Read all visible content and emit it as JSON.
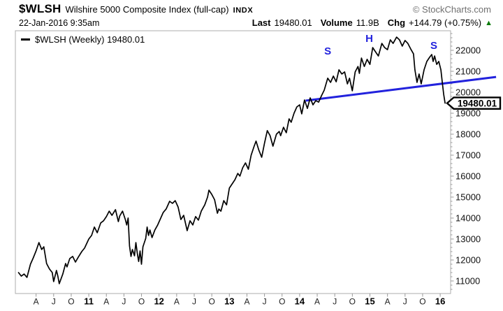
{
  "header": {
    "symbol": "$WLSH",
    "description": "Wilshire 5000 Composite Index (full-cap)",
    "exchange": "INDX",
    "copyright": "© StockCharts.com",
    "datetime": "22-Jan-2016 9:35am",
    "last_label": "Last",
    "last_value": "19480.01",
    "volume_label": "Volume",
    "volume_value": "11.9B",
    "chg_label": "Chg",
    "chg_value": "+144.79 (+0.75%)",
    "chg_arrow": "▲"
  },
  "legend": {
    "label": "$WLSH (Weekly)",
    "value": "19480.01"
  },
  "price_tag": {
    "value": "19480.01"
  },
  "colors": {
    "price_line": "#000000",
    "trendline": "#2222dd",
    "annotation": "#2222dd",
    "chg_up": "#0a7a0a",
    "frame": "#adadad",
    "tick": "#999999",
    "month_label": "#222222",
    "year_label": "#000000",
    "y_label": "#111111",
    "copyright": "#707070"
  },
  "chart_data": {
    "type": "line",
    "title": "$WLSH (Weekly)",
    "symbol": "$WLSH",
    "timeframe": "Weekly",
    "last": 19480.01,
    "grid": false,
    "legend_position": "top-left",
    "y_axis": {
      "min": 10400,
      "max": 22930,
      "tick_interval": 1000,
      "labels": [
        22000,
        21000,
        20000,
        19000,
        18000,
        17000,
        16000,
        15000,
        14000,
        13000,
        12000,
        11000
      ]
    },
    "x_axis": {
      "ticks": [
        {
          "label": "A",
          "year": 2010.25,
          "bold": false
        },
        {
          "label": "J",
          "year": 2010.5,
          "bold": false
        },
        {
          "label": "O",
          "year": 2010.75,
          "bold": false
        },
        {
          "label": "11",
          "year": 2011.0,
          "bold": true
        },
        {
          "label": "A",
          "year": 2011.25,
          "bold": false
        },
        {
          "label": "J",
          "year": 2011.5,
          "bold": false
        },
        {
          "label": "O",
          "year": 2011.75,
          "bold": false
        },
        {
          "label": "12",
          "year": 2012.0,
          "bold": true
        },
        {
          "label": "A",
          "year": 2012.25,
          "bold": false
        },
        {
          "label": "J",
          "year": 2012.5,
          "bold": false
        },
        {
          "label": "O",
          "year": 2012.75,
          "bold": false
        },
        {
          "label": "13",
          "year": 2013.0,
          "bold": true
        },
        {
          "label": "A",
          "year": 2013.25,
          "bold": false
        },
        {
          "label": "J",
          "year": 2013.5,
          "bold": false
        },
        {
          "label": "O",
          "year": 2013.75,
          "bold": false
        },
        {
          "label": "14",
          "year": 2014.0,
          "bold": true
        },
        {
          "label": "A",
          "year": 2014.25,
          "bold": false
        },
        {
          "label": "J",
          "year": 2014.5,
          "bold": false
        },
        {
          "label": "O",
          "year": 2014.75,
          "bold": false
        },
        {
          "label": "15",
          "year": 2015.0,
          "bold": true
        },
        {
          "label": "A",
          "year": 2015.25,
          "bold": false
        },
        {
          "label": "J",
          "year": 2015.5,
          "bold": false
        },
        {
          "label": "O",
          "year": 2015.75,
          "bold": false
        },
        {
          "label": "16",
          "year": 2016.0,
          "bold": true
        }
      ]
    },
    "series": [
      {
        "name": "$WLSH weekly close",
        "points": [
          [
            2010.0,
            11400
          ],
          [
            2010.04,
            11230
          ],
          [
            2010.08,
            11330
          ],
          [
            2010.12,
            11170
          ],
          [
            2010.17,
            11800
          ],
          [
            2010.21,
            12100
          ],
          [
            2010.25,
            12430
          ],
          [
            2010.29,
            12830
          ],
          [
            2010.33,
            12500
          ],
          [
            2010.36,
            12630
          ],
          [
            2010.4,
            11830
          ],
          [
            2010.44,
            11570
          ],
          [
            2010.48,
            11400
          ],
          [
            2010.5,
            10970
          ],
          [
            2010.54,
            11500
          ],
          [
            2010.56,
            11230
          ],
          [
            2010.58,
            10870
          ],
          [
            2010.63,
            11330
          ],
          [
            2010.67,
            11830
          ],
          [
            2010.69,
            11670
          ],
          [
            2010.73,
            12070
          ],
          [
            2010.77,
            12170
          ],
          [
            2010.81,
            11900
          ],
          [
            2010.85,
            12130
          ],
          [
            2010.9,
            12400
          ],
          [
            2010.94,
            12570
          ],
          [
            2011.0,
            13000
          ],
          [
            2011.04,
            13170
          ],
          [
            2011.08,
            13570
          ],
          [
            2011.12,
            13300
          ],
          [
            2011.17,
            13770
          ],
          [
            2011.21,
            13870
          ],
          [
            2011.25,
            14070
          ],
          [
            2011.29,
            14330
          ],
          [
            2011.33,
            14130
          ],
          [
            2011.38,
            14400
          ],
          [
            2011.42,
            13830
          ],
          [
            2011.44,
            14100
          ],
          [
            2011.48,
            14330
          ],
          [
            2011.52,
            13930
          ],
          [
            2011.54,
            13670
          ],
          [
            2011.56,
            14000
          ],
          [
            2011.58,
            12670
          ],
          [
            2011.6,
            12170
          ],
          [
            2011.62,
            12500
          ],
          [
            2011.65,
            12200
          ],
          [
            2011.67,
            12830
          ],
          [
            2011.69,
            12330
          ],
          [
            2011.71,
            11930
          ],
          [
            2011.73,
            12430
          ],
          [
            2011.75,
            11800
          ],
          [
            2011.77,
            12630
          ],
          [
            2011.81,
            13030
          ],
          [
            2011.83,
            13570
          ],
          [
            2011.85,
            13170
          ],
          [
            2011.87,
            13430
          ],
          [
            2011.9,
            13070
          ],
          [
            2011.94,
            13430
          ],
          [
            2011.98,
            13670
          ],
          [
            2012.02,
            13970
          ],
          [
            2012.06,
            14270
          ],
          [
            2012.1,
            14430
          ],
          [
            2012.15,
            14800
          ],
          [
            2012.19,
            14700
          ],
          [
            2012.23,
            14830
          ],
          [
            2012.27,
            14530
          ],
          [
            2012.31,
            13930
          ],
          [
            2012.35,
            14130
          ],
          [
            2012.4,
            13400
          ],
          [
            2012.44,
            13870
          ],
          [
            2012.48,
            13670
          ],
          [
            2012.52,
            14070
          ],
          [
            2012.56,
            13900
          ],
          [
            2012.6,
            14330
          ],
          [
            2012.65,
            14630
          ],
          [
            2012.69,
            15000
          ],
          [
            2012.71,
            15330
          ],
          [
            2012.75,
            15130
          ],
          [
            2012.79,
            14870
          ],
          [
            2012.83,
            14230
          ],
          [
            2012.85,
            14430
          ],
          [
            2012.88,
            14330
          ],
          [
            2012.92,
            14830
          ],
          [
            2012.96,
            14630
          ],
          [
            2013.0,
            15430
          ],
          [
            2013.04,
            15630
          ],
          [
            2013.08,
            15830
          ],
          [
            2013.12,
            16130
          ],
          [
            2013.15,
            16000
          ],
          [
            2013.19,
            16400
          ],
          [
            2013.23,
            16630
          ],
          [
            2013.27,
            16330
          ],
          [
            2013.31,
            17000
          ],
          [
            2013.35,
            17400
          ],
          [
            2013.38,
            17670
          ],
          [
            2013.42,
            17230
          ],
          [
            2013.46,
            16900
          ],
          [
            2013.5,
            17570
          ],
          [
            2013.54,
            18170
          ],
          [
            2013.58,
            17930
          ],
          [
            2013.62,
            17430
          ],
          [
            2013.67,
            18000
          ],
          [
            2013.71,
            18130
          ],
          [
            2013.73,
            17930
          ],
          [
            2013.77,
            18330
          ],
          [
            2013.81,
            18070
          ],
          [
            2013.85,
            18730
          ],
          [
            2013.88,
            18570
          ],
          [
            2013.92,
            19000
          ],
          [
            2013.96,
            19300
          ],
          [
            2014.0,
            19400
          ],
          [
            2014.03,
            18970
          ],
          [
            2014.07,
            19630
          ],
          [
            2014.11,
            19230
          ],
          [
            2014.15,
            19730
          ],
          [
            2014.19,
            19400
          ],
          [
            2014.23,
            19600
          ],
          [
            2014.27,
            19530
          ],
          [
            2014.31,
            19830
          ],
          [
            2014.35,
            20100
          ],
          [
            2014.4,
            20670
          ],
          [
            2014.44,
            20470
          ],
          [
            2014.48,
            20770
          ],
          [
            2014.52,
            20500
          ],
          [
            2014.56,
            21070
          ],
          [
            2014.6,
            20870
          ],
          [
            2014.64,
            20970
          ],
          [
            2014.68,
            20400
          ],
          [
            2014.71,
            20670
          ],
          [
            2014.75,
            20070
          ],
          [
            2014.79,
            20970
          ],
          [
            2014.83,
            21230
          ],
          [
            2014.85,
            20900
          ],
          [
            2014.88,
            21630
          ],
          [
            2014.92,
            21230
          ],
          [
            2014.96,
            21570
          ],
          [
            2015.0,
            21330
          ],
          [
            2015.04,
            22130
          ],
          [
            2015.08,
            21930
          ],
          [
            2015.12,
            21730
          ],
          [
            2015.17,
            22330
          ],
          [
            2015.21,
            22130
          ],
          [
            2015.25,
            22030
          ],
          [
            2015.29,
            22500
          ],
          [
            2015.33,
            22330
          ],
          [
            2015.38,
            22630
          ],
          [
            2015.42,
            22500
          ],
          [
            2015.46,
            22200
          ],
          [
            2015.5,
            22470
          ],
          [
            2015.54,
            22330
          ],
          [
            2015.58,
            22070
          ],
          [
            2015.62,
            21830
          ],
          [
            2015.64,
            21070
          ],
          [
            2015.67,
            20470
          ],
          [
            2015.7,
            20870
          ],
          [
            2015.73,
            20400
          ],
          [
            2015.77,
            21070
          ],
          [
            2015.81,
            21470
          ],
          [
            2015.85,
            21670
          ],
          [
            2015.88,
            21800
          ],
          [
            2015.9,
            21470
          ],
          [
            2015.92,
            21730
          ],
          [
            2015.95,
            21330
          ],
          [
            2015.98,
            21470
          ],
          [
            2016.01,
            21070
          ],
          [
            2016.03,
            20470
          ],
          [
            2016.05,
            19900
          ],
          [
            2016.07,
            19480.01
          ]
        ]
      }
    ],
    "trendline": {
      "from": [
        2014.085,
        19600
      ],
      "to": [
        2016.795,
        20730
      ]
    },
    "annotations": [
      {
        "label": "S",
        "year": 2014.4,
        "value": 21970
      },
      {
        "label": "H",
        "year": 2014.99,
        "value": 22570
      },
      {
        "label": "S",
        "year": 2015.91,
        "value": 22230
      }
    ]
  }
}
